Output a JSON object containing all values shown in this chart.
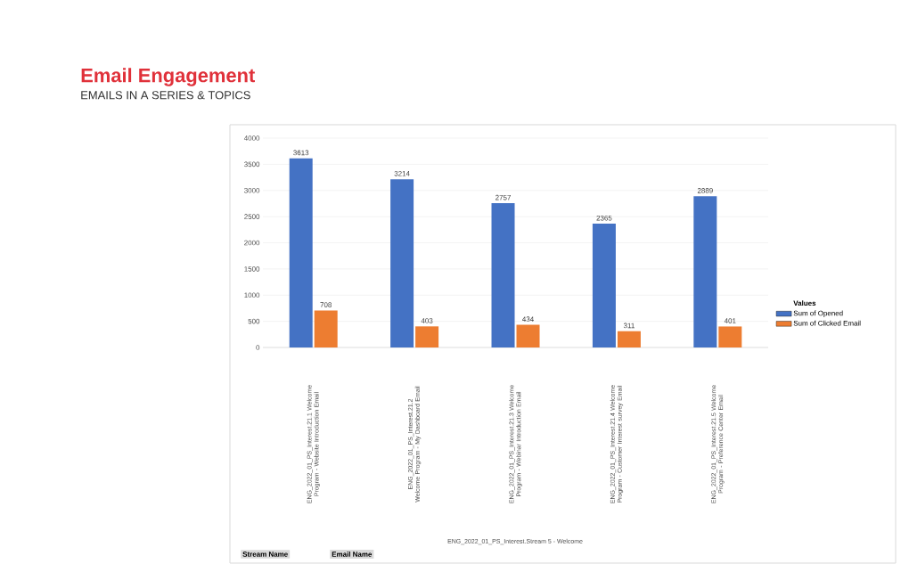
{
  "chart_data": {
    "type": "bar",
    "title": "Email Engagement",
    "subtitle": "EMAILS IN A SERIES & TOPICS",
    "legend_title": "Values",
    "categories": [
      "ENG_2022_01_PS_Interest.21.1 Welcome Program - Website Introduction Email",
      "ENG_2022_01_PS_Interest.21.2 Welcome Program - My Dashboard Email",
      "ENG_2022_01_PS_Interest.21.3 Welcome Program - Webinar Introduction Email",
      "ENG_2022_01_PS_Interest.21.4 Welcome Program - Customer Interest survey Email",
      "ENG_2022_01_PS_Interest.21.5 Welcome Program - Preference Center Email"
    ],
    "series": [
      {
        "name": "Sum of Opened",
        "color": "#4472c4",
        "values": [
          3613,
          3214,
          2757,
          2365,
          2889
        ]
      },
      {
        "name": "Sum of Clicked Email",
        "color": "#ed7d31",
        "values": [
          708,
          403,
          434,
          311,
          401
        ]
      }
    ],
    "ylim": [
      0,
      4000
    ],
    "yticks": [
      0,
      500,
      1000,
      1500,
      2000,
      2500,
      3000,
      3500,
      4000
    ],
    "grid": "y",
    "legend": "right",
    "data_labels": true,
    "annotations": [
      "ENG_2022_01_PS_Interest.Stream 5 - Welcome",
      "Stream Name",
      "Email Name"
    ]
  }
}
